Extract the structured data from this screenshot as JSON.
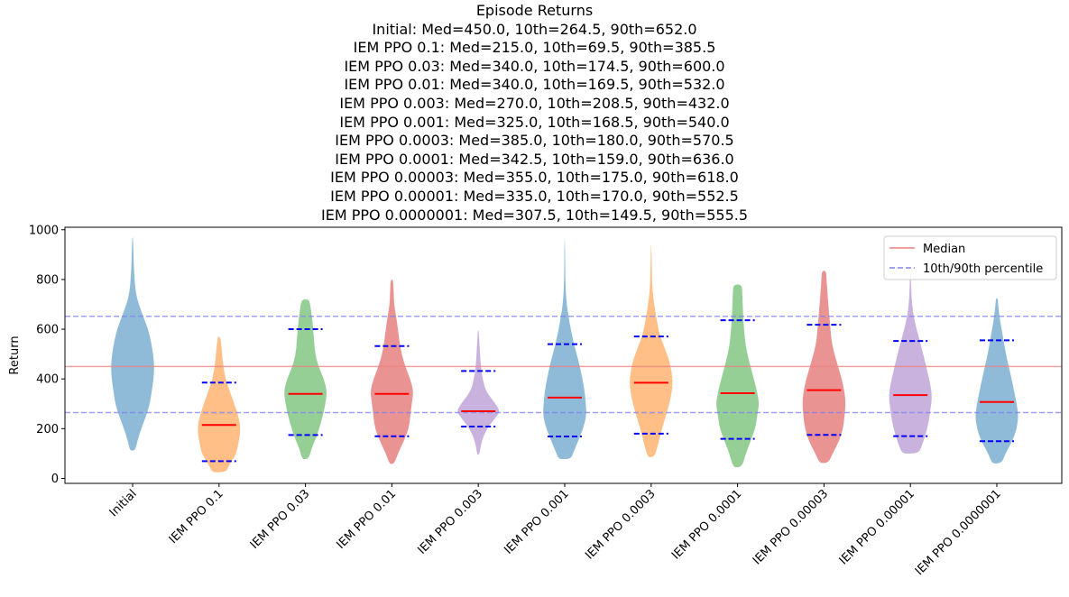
{
  "chart_data": {
    "type": "violin",
    "title": "Episode Returns",
    "subtitle_lines": [
      "Initial: Med=450.0, 10th=264.5, 90th=652.0",
      "IEM PPO 0.1: Med=215.0, 10th=69.5, 90th=385.5",
      "IEM PPO 0.03: Med=340.0, 10th=174.5, 90th=600.0",
      "IEM PPO 0.01: Med=340.0, 10th=169.5, 90th=532.0",
      "IEM PPO 0.003: Med=270.0, 10th=208.5, 90th=432.0",
      "IEM PPO 0.001: Med=325.0, 10th=168.5, 90th=540.0",
      "IEM PPO 0.0003: Med=385.0, 10th=180.0, 90th=570.5",
      "IEM PPO 0.0001: Med=342.5, 10th=159.0, 90th=636.0",
      "IEM PPO 0.00003: Med=355.0, 10th=175.0, 90th=618.0",
      "IEM PPO 0.00001: Med=335.0, 10th=170.0, 90th=552.5",
      "IEM PPO 0.0000001: Med=307.5, 10th=149.5, 90th=555.5"
    ],
    "ylabel": "Return",
    "xlabel": "",
    "ylim": [
      -20,
      1010
    ],
    "yticks": [
      0,
      200,
      400,
      600,
      800,
      1000
    ],
    "grid": false,
    "legend": {
      "placement": "top-right",
      "entries": [
        {
          "label": "Median",
          "color": "#f08080",
          "style": "solid"
        },
        {
          "label": "10th/90th percentile",
          "color": "#8080f0",
          "style": "dashed"
        }
      ]
    },
    "reference_lines": {
      "median": 450.0,
      "p10": 264.5,
      "p90": 652.0
    },
    "series": [
      {
        "category": "Initial",
        "color": "#1f77b4",
        "median": 450.0,
        "p10": 264.5,
        "p90": 652.0,
        "show_markers": false,
        "profile": [
          [
            112,
            0.12
          ],
          [
            150,
            0.22
          ],
          [
            200,
            0.4
          ],
          [
            250,
            0.62
          ],
          [
            300,
            0.8
          ],
          [
            350,
            0.88
          ],
          [
            400,
            0.97
          ],
          [
            450,
            1.0
          ],
          [
            500,
            0.95
          ],
          [
            550,
            0.85
          ],
          [
            600,
            0.72
          ],
          [
            650,
            0.5
          ],
          [
            700,
            0.28
          ],
          [
            750,
            0.14
          ],
          [
            800,
            0.09
          ],
          [
            850,
            0.06
          ],
          [
            900,
            0.04
          ],
          [
            970,
            0.015
          ]
        ]
      },
      {
        "category": "IEM PPO 0.1",
        "color": "#ff7f0e",
        "median": 215.0,
        "p10": 69.5,
        "p90": 385.5,
        "show_markers": true,
        "profile": [
          [
            25,
            0.32
          ],
          [
            50,
            0.45
          ],
          [
            75,
            0.62
          ],
          [
            100,
            0.8
          ],
          [
            150,
            0.92
          ],
          [
            200,
            1.0
          ],
          [
            250,
            0.9
          ],
          [
            300,
            0.7
          ],
          [
            350,
            0.5
          ],
          [
            400,
            0.3
          ],
          [
            450,
            0.2
          ],
          [
            500,
            0.14
          ],
          [
            540,
            0.1
          ],
          [
            570,
            0.05
          ]
        ]
      },
      {
        "category": "IEM PPO 0.03",
        "color": "#2ca02c",
        "median": 340.0,
        "p10": 174.5,
        "p90": 600.0,
        "show_markers": true,
        "profile": [
          [
            78,
            0.15
          ],
          [
            120,
            0.28
          ],
          [
            175,
            0.55
          ],
          [
            250,
            0.8
          ],
          [
            300,
            0.92
          ],
          [
            350,
            1.0
          ],
          [
            400,
            0.85
          ],
          [
            450,
            0.6
          ],
          [
            500,
            0.45
          ],
          [
            550,
            0.4
          ],
          [
            600,
            0.36
          ],
          [
            650,
            0.3
          ],
          [
            700,
            0.22
          ],
          [
            720,
            0.15
          ]
        ]
      },
      {
        "category": "IEM PPO 0.01",
        "color": "#d62728",
        "median": 340.0,
        "p10": 169.5,
        "p90": 532.0,
        "show_markers": true,
        "profile": [
          [
            58,
            0.1
          ],
          [
            100,
            0.28
          ],
          [
            150,
            0.55
          ],
          [
            200,
            0.78
          ],
          [
            250,
            0.85
          ],
          [
            300,
            0.92
          ],
          [
            350,
            1.0
          ],
          [
            400,
            0.85
          ],
          [
            450,
            0.62
          ],
          [
            500,
            0.45
          ],
          [
            550,
            0.35
          ],
          [
            600,
            0.28
          ],
          [
            650,
            0.2
          ],
          [
            700,
            0.1
          ],
          [
            760,
            0.08
          ],
          [
            800,
            0.05
          ]
        ]
      },
      {
        "category": "IEM PPO 0.003",
        "color": "#9467bd",
        "median": 270.0,
        "p10": 208.5,
        "p90": 432.0,
        "show_markers": true,
        "profile": [
          [
            95,
            0.05
          ],
          [
            150,
            0.15
          ],
          [
            200,
            0.4
          ],
          [
            250,
            0.85
          ],
          [
            270,
            1.0
          ],
          [
            300,
            0.8
          ],
          [
            350,
            0.35
          ],
          [
            400,
            0.2
          ],
          [
            450,
            0.12
          ],
          [
            500,
            0.08
          ],
          [
            550,
            0.05
          ],
          [
            595,
            0.02
          ]
        ]
      },
      {
        "category": "IEM PPO 0.001",
        "color": "#1f77b4",
        "median": 325.0,
        "p10": 168.5,
        "p90": 540.0,
        "show_markers": true,
        "profile": [
          [
            78,
            0.28
          ],
          [
            100,
            0.38
          ],
          [
            150,
            0.62
          ],
          [
            200,
            0.85
          ],
          [
            250,
            1.0
          ],
          [
            300,
            0.98
          ],
          [
            350,
            0.92
          ],
          [
            400,
            0.82
          ],
          [
            450,
            0.7
          ],
          [
            500,
            0.55
          ],
          [
            550,
            0.4
          ],
          [
            600,
            0.28
          ],
          [
            650,
            0.18
          ],
          [
            700,
            0.09
          ],
          [
            760,
            0.04
          ],
          [
            850,
            0.02
          ],
          [
            960,
            0.01
          ]
        ]
      },
      {
        "category": "IEM PPO 0.0003",
        "color": "#ff7f0e",
        "median": 385.0,
        "p10": 180.0,
        "p90": 570.5,
        "show_markers": true,
        "profile": [
          [
            85,
            0.15
          ],
          [
            130,
            0.3
          ],
          [
            200,
            0.5
          ],
          [
            280,
            0.78
          ],
          [
            330,
            0.92
          ],
          [
            380,
            1.0
          ],
          [
            430,
            0.95
          ],
          [
            480,
            0.82
          ],
          [
            530,
            0.6
          ],
          [
            580,
            0.38
          ],
          [
            640,
            0.25
          ],
          [
            700,
            0.14
          ],
          [
            750,
            0.07
          ],
          [
            800,
            0.04
          ],
          [
            940,
            0.01
          ]
        ]
      },
      {
        "category": "IEM PPO 0.0001",
        "color": "#2ca02c",
        "median": 342.5,
        "p10": 159.0,
        "p90": 636.0,
        "show_markers": true,
        "profile": [
          [
            45,
            0.2
          ],
          [
            100,
            0.38
          ],
          [
            150,
            0.6
          ],
          [
            200,
            0.82
          ],
          [
            260,
            0.92
          ],
          [
            300,
            1.0
          ],
          [
            350,
            0.9
          ],
          [
            400,
            0.75
          ],
          [
            450,
            0.6
          ],
          [
            500,
            0.45
          ],
          [
            550,
            0.35
          ],
          [
            600,
            0.3
          ],
          [
            650,
            0.26
          ],
          [
            700,
            0.24
          ],
          [
            740,
            0.22
          ],
          [
            780,
            0.2
          ]
        ]
      },
      {
        "category": "IEM PPO 0.00003",
        "color": "#d62728",
        "median": 355.0,
        "p10": 175.0,
        "p90": 618.0,
        "show_markers": true,
        "profile": [
          [
            62,
            0.2
          ],
          [
            100,
            0.4
          ],
          [
            150,
            0.7
          ],
          [
            200,
            0.88
          ],
          [
            250,
            0.95
          ],
          [
            300,
            1.0
          ],
          [
            350,
            0.95
          ],
          [
            400,
            0.82
          ],
          [
            450,
            0.65
          ],
          [
            500,
            0.48
          ],
          [
            550,
            0.35
          ],
          [
            600,
            0.3
          ],
          [
            650,
            0.25
          ],
          [
            700,
            0.2
          ],
          [
            760,
            0.15
          ],
          [
            800,
            0.12
          ],
          [
            835,
            0.1
          ]
        ]
      },
      {
        "category": "IEM PPO 0.00001",
        "color": "#9467bd",
        "median": 335.0,
        "p10": 170.0,
        "p90": 552.5,
        "show_markers": true,
        "profile": [
          [
            100,
            0.38
          ],
          [
            130,
            0.52
          ],
          [
            180,
            0.72
          ],
          [
            230,
            0.85
          ],
          [
            280,
            0.93
          ],
          [
            330,
            1.0
          ],
          [
            380,
            0.92
          ],
          [
            430,
            0.78
          ],
          [
            480,
            0.65
          ],
          [
            530,
            0.5
          ],
          [
            580,
            0.35
          ],
          [
            630,
            0.2
          ],
          [
            680,
            0.1
          ],
          [
            730,
            0.05
          ],
          [
            780,
            0.03
          ],
          [
            830,
            0.01
          ]
        ]
      },
      {
        "category": "IEM PPO 0.0000001",
        "color": "#1f77b4",
        "median": 307.5,
        "p10": 149.5,
        "p90": 555.5,
        "show_markers": true,
        "profile": [
          [
            60,
            0.22
          ],
          [
            100,
            0.4
          ],
          [
            150,
            0.72
          ],
          [
            200,
            0.92
          ],
          [
            250,
            1.0
          ],
          [
            300,
            0.92
          ],
          [
            350,
            0.8
          ],
          [
            400,
            0.68
          ],
          [
            450,
            0.55
          ],
          [
            500,
            0.42
          ],
          [
            550,
            0.32
          ],
          [
            600,
            0.22
          ],
          [
            650,
            0.12
          ],
          [
            700,
            0.06
          ],
          [
            725,
            0.04
          ]
        ]
      }
    ]
  }
}
